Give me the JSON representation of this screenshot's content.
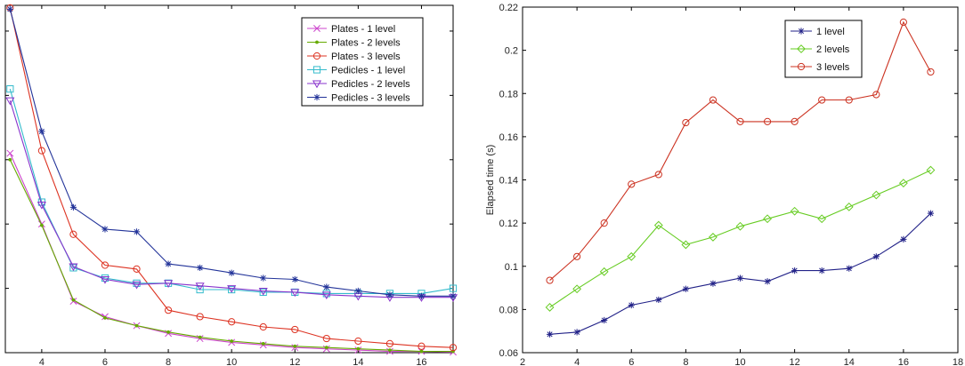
{
  "chart_data": [
    {
      "type": "line",
      "title": "",
      "xlabel": "",
      "ylabel": "",
      "xlim": [
        2.85,
        17
      ],
      "ylim": [
        0,
        0.27
      ],
      "xticks": [
        4,
        6,
        8,
        10,
        12,
        14,
        16
      ],
      "yticks": [],
      "legend_position": "top-right",
      "x": [
        3,
        4,
        5,
        6,
        7,
        8,
        9,
        10,
        11,
        12,
        13,
        14,
        15,
        16,
        17
      ],
      "series": [
        {
          "name": "Plates - 1 level",
          "color": "#cc44cc",
          "marker": "x",
          "values": [
            0.155,
            0.1,
            0.04,
            0.028,
            0.021,
            0.015,
            0.011,
            0.008,
            0.006,
            0.004,
            0.003,
            0.002,
            0.001,
            0.001,
            0.0005
          ]
        },
        {
          "name": "Plates - 2 levels",
          "color": "#66aa00",
          "marker": "dot",
          "values": [
            0.15,
            0.099,
            0.041,
            0.027,
            0.021,
            0.016,
            0.012,
            0.009,
            0.007,
            0.005,
            0.004,
            0.003,
            0.002,
            0.001,
            0.001
          ]
        },
        {
          "name": "Plates - 3 levels",
          "color": "#dd3322",
          "marker": "circle",
          "values": [
            0.268,
            0.157,
            0.092,
            0.068,
            0.065,
            0.033,
            0.028,
            0.024,
            0.02,
            0.018,
            0.011,
            0.009,
            0.007,
            0.005,
            0.004
          ]
        },
        {
          "name": "Pedicles - 1 level",
          "color": "#33bbcc",
          "marker": "square",
          "values": [
            0.205,
            0.117,
            0.066,
            0.058,
            0.054,
            0.054,
            0.049,
            0.049,
            0.047,
            0.047,
            0.046,
            0.046,
            0.046,
            0.046,
            0.05
          ]
        },
        {
          "name": "Pedicles - 2 levels",
          "color": "#8833cc",
          "marker": "triangle",
          "values": [
            0.196,
            0.115,
            0.067,
            0.057,
            0.053,
            0.054,
            0.052,
            0.05,
            0.048,
            0.047,
            0.045,
            0.044,
            0.043,
            0.043,
            0.043
          ]
        },
        {
          "name": "Pedicles - 3 levels",
          "color": "#223399",
          "marker": "star",
          "values": [
            0.267,
            0.172,
            0.113,
            0.096,
            0.094,
            0.069,
            0.066,
            0.062,
            0.058,
            0.057,
            0.051,
            0.048,
            0.045,
            0.044,
            0.044
          ]
        }
      ]
    },
    {
      "type": "line",
      "title": "",
      "xlabel": "",
      "ylabel": "Elapsed time (s)",
      "xlim": [
        2,
        18
      ],
      "ylim": [
        0.06,
        0.22
      ],
      "xticks": [
        2,
        4,
        6,
        8,
        10,
        12,
        14,
        16,
        18
      ],
      "yticks": [
        0.06,
        0.08,
        0.1,
        0.12,
        0.14,
        0.16,
        0.18,
        0.2,
        0.22
      ],
      "ytick_labels": [
        "0.06",
        "0.08",
        "0.1",
        "0.12",
        "0.14",
        "0.16",
        "0.18",
        "0.2",
        "0.22"
      ],
      "legend_position": "top-right",
      "x": [
        3,
        4,
        5,
        6,
        7,
        8,
        9,
        10,
        11,
        12,
        13,
        14,
        15,
        16,
        17
      ],
      "series": [
        {
          "name": "1 level",
          "color": "#222288",
          "marker": "star",
          "values": [
            0.0685,
            0.0695,
            0.075,
            0.082,
            0.0845,
            0.0895,
            0.092,
            0.0945,
            0.093,
            0.098,
            0.098,
            0.099,
            0.1045,
            0.1125,
            0.1245
          ]
        },
        {
          "name": "2 levels",
          "color": "#66cc22",
          "marker": "diamond",
          "values": [
            0.081,
            0.0895,
            0.0975,
            0.1045,
            0.119,
            0.11,
            0.1135,
            0.1185,
            0.122,
            0.1255,
            0.122,
            0.1275,
            0.133,
            0.1385,
            0.1445
          ]
        },
        {
          "name": "3 levels",
          "color": "#cc3322",
          "marker": "circle",
          "values": [
            0.0935,
            0.1045,
            0.12,
            0.138,
            0.1425,
            0.1665,
            0.177,
            0.167,
            0.167,
            0.167,
            0.177,
            0.177,
            0.1795,
            0.213,
            0.19
          ]
        }
      ]
    }
  ]
}
